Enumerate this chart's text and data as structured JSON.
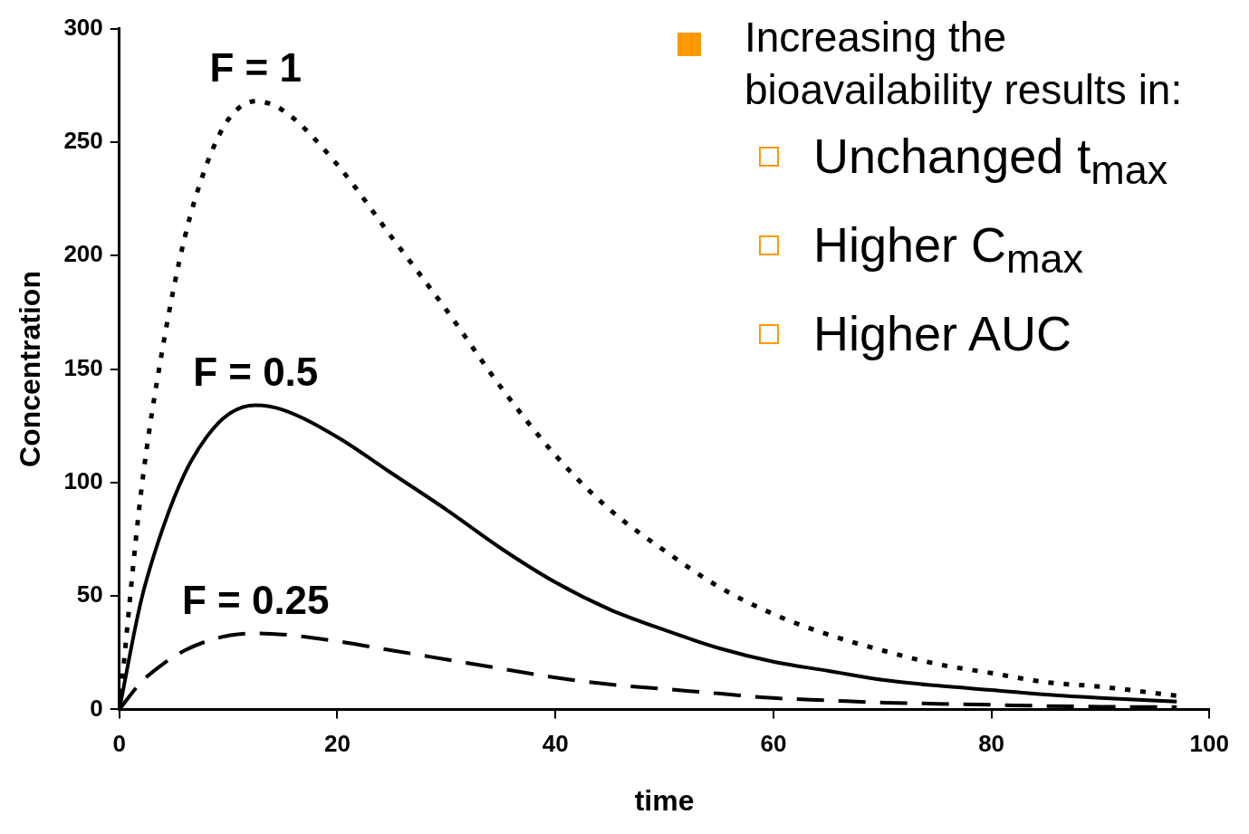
{
  "chart_data": {
    "type": "line",
    "xlabel": "time",
    "ylabel": "Concentration",
    "annotations": [
      "Increasing the bioavailability results in:",
      "Unchanged t$_{max}$",
      "Higher C$_{max}$",
      "Higher AUC"
    ],
    "x": [
      0,
      2,
      4,
      6,
      8,
      10,
      12.5,
      15,
      20,
      25,
      30,
      35,
      40,
      45,
      50,
      55,
      60,
      65,
      70,
      75,
      80,
      85,
      90,
      97
    ],
    "series": [
      {
        "name": "F = 1",
        "color": "#000000",
        "line_style": "dotted",
        "values": [
          0,
          96,
          160,
          208,
          240,
          260,
          268,
          264,
          240,
          208,
          176,
          142,
          112,
          88,
          70,
          54,
          42,
          33,
          26,
          20,
          16,
          12,
          10,
          6
        ]
      },
      {
        "name": "F = 0.5",
        "color": "#000000",
        "line_style": "solid",
        "values": [
          0,
          48,
          80,
          104,
          120,
          130,
          134,
          132,
          120,
          104,
          88,
          71,
          56,
          44,
          35,
          27,
          21,
          17,
          13,
          10.5,
          8.5,
          6.5,
          5,
          3.5
        ]
      },
      {
        "name": "F = 0.25",
        "color": "#000000",
        "line_style": "dashed",
        "values": [
          0,
          12,
          20,
          26,
          30,
          32.5,
          33.5,
          33,
          30,
          26,
          22,
          18,
          14,
          11,
          9,
          7,
          5,
          4,
          3,
          2.5,
          2,
          1.5,
          1.2,
          1
        ]
      }
    ],
    "xlim": [
      0,
      100
    ],
    "xticks": [
      0,
      20,
      40,
      60,
      80,
      100
    ],
    "ylim": [
      0,
      300
    ],
    "yticks": [
      0,
      50,
      100,
      150,
      200,
      250,
      300
    ],
    "grid": false,
    "legend": false,
    "marker": "none"
  }
}
